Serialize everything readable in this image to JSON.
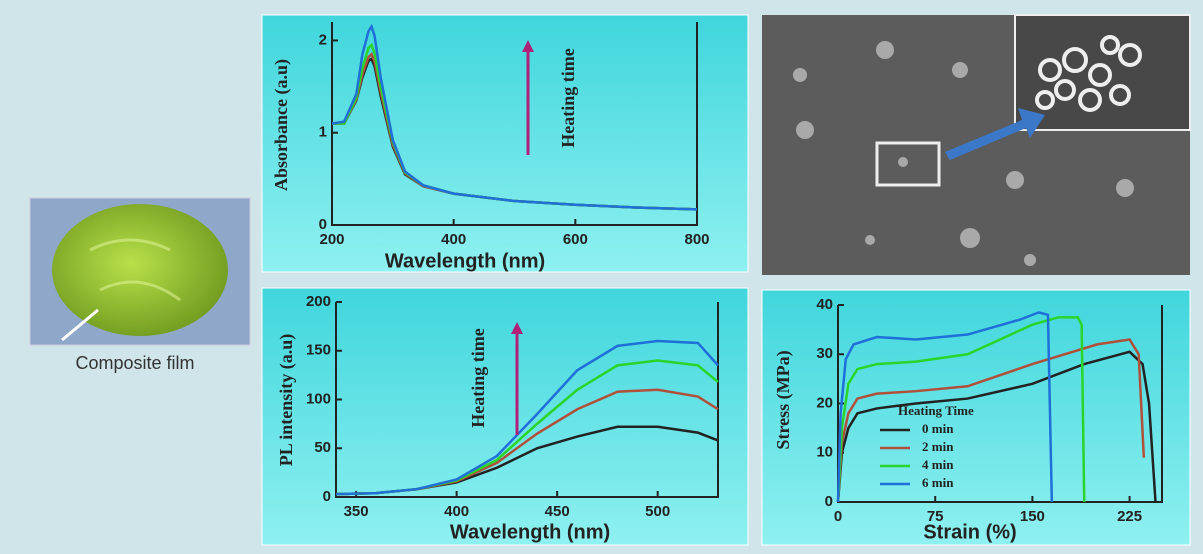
{
  "figure": {
    "caption": "Composite film"
  },
  "chart_data": [
    {
      "type": "line",
      "x_label": "Wavelength (nm)",
      "y_label": "Absorbance (a.u)",
      "annotation": "Heating time",
      "x": [
        200,
        220,
        240,
        250,
        260,
        265,
        270,
        280,
        300,
        320,
        350,
        400,
        500,
        600,
        700,
        800
      ],
      "xlim": [
        200,
        800
      ],
      "ylim": [
        0,
        2.2
      ],
      "xticks": [
        200,
        400,
        600,
        800
      ],
      "yticks": [
        0,
        1,
        2
      ],
      "series": [
        {
          "color": "#222222",
          "values": [
            1.1,
            1.1,
            1.35,
            1.6,
            1.78,
            1.8,
            1.72,
            1.4,
            0.85,
            0.55,
            0.42,
            0.34,
            0.26,
            0.22,
            0.19,
            0.17
          ]
        },
        {
          "color": "#b0503a",
          "values": [
            1.1,
            1.1,
            1.36,
            1.63,
            1.82,
            1.85,
            1.77,
            1.44,
            0.87,
            0.56,
            0.42,
            0.34,
            0.26,
            0.22,
            0.19,
            0.17
          ]
        },
        {
          "color": "#2ad42a",
          "values": [
            1.1,
            1.1,
            1.38,
            1.7,
            1.92,
            1.95,
            1.86,
            1.5,
            0.9,
            0.57,
            0.43,
            0.34,
            0.26,
            0.22,
            0.19,
            0.17
          ]
        },
        {
          "color": "#1f6fd8",
          "values": [
            1.1,
            1.12,
            1.42,
            1.85,
            2.1,
            2.15,
            2.05,
            1.6,
            0.92,
            0.58,
            0.43,
            0.34,
            0.26,
            0.22,
            0.19,
            0.17
          ]
        }
      ]
    },
    {
      "type": "line",
      "x_label": "Wavelength (nm)",
      "y_label": "PL intensity (a.u)",
      "annotation": "Heating time",
      "x": [
        340,
        360,
        380,
        400,
        420,
        440,
        460,
        480,
        500,
        520,
        530
      ],
      "xlim": [
        340,
        530
      ],
      "ylim": [
        0,
        200
      ],
      "xticks": [
        350,
        400,
        450,
        500
      ],
      "yticks": [
        0,
        50,
        100,
        150,
        200
      ],
      "series": [
        {
          "color": "#222222",
          "values": [
            3,
            4,
            8,
            15,
            30,
            50,
            62,
            72,
            72,
            66,
            58
          ]
        },
        {
          "color": "#b0503a",
          "values": [
            3,
            4,
            8,
            16,
            35,
            65,
            90,
            108,
            110,
            103,
            90
          ]
        },
        {
          "color": "#2ad42a",
          "values": [
            3,
            4,
            8,
            17,
            38,
            75,
            110,
            135,
            140,
            135,
            118
          ]
        },
        {
          "color": "#1f6fd8",
          "values": [
            3,
            4,
            8,
            18,
            42,
            85,
            130,
            155,
            160,
            158,
            135
          ]
        }
      ]
    },
    {
      "type": "line",
      "x_label": "Strain (%)",
      "y_label": "Stress (MPa)",
      "legend_title": "Heating Time",
      "xlim": [
        0,
        250
      ],
      "ylim": [
        0,
        40
      ],
      "xticks": [
        0,
        75,
        150,
        225
      ],
      "yticks": [
        0,
        10,
        20,
        30,
        40
      ],
      "series": [
        {
          "name": "0 min",
          "color": "#222222",
          "x": [
            0,
            3,
            8,
            15,
            30,
            60,
            100,
            150,
            190,
            225,
            235,
            240,
            245
          ],
          "values": [
            0,
            10,
            15,
            18,
            19,
            20,
            21,
            24,
            28,
            30.5,
            28,
            20,
            0
          ]
        },
        {
          "name": "2 min",
          "color": "#b0503a",
          "x": [
            0,
            3,
            8,
            15,
            30,
            60,
            100,
            150,
            200,
            225,
            232,
            236
          ],
          "values": [
            0,
            12,
            18,
            21,
            22,
            22.5,
            23.5,
            28,
            32,
            33,
            30,
            9
          ]
        },
        {
          "name": "4 min",
          "color": "#2ad42a",
          "x": [
            0,
            3,
            8,
            15,
            30,
            60,
            100,
            150,
            170,
            185,
            188,
            190
          ],
          "values": [
            0,
            15,
            24,
            27,
            28,
            28.5,
            30,
            36,
            37.5,
            37.5,
            36,
            0
          ]
        },
        {
          "name": "6 min",
          "color": "#1f6fd8",
          "x": [
            0,
            2,
            6,
            12,
            30,
            60,
            100,
            140,
            155,
            162,
            165
          ],
          "values": [
            0,
            18,
            29,
            32,
            33.5,
            33,
            34,
            37,
            38.5,
            38,
            0
          ]
        }
      ]
    }
  ]
}
